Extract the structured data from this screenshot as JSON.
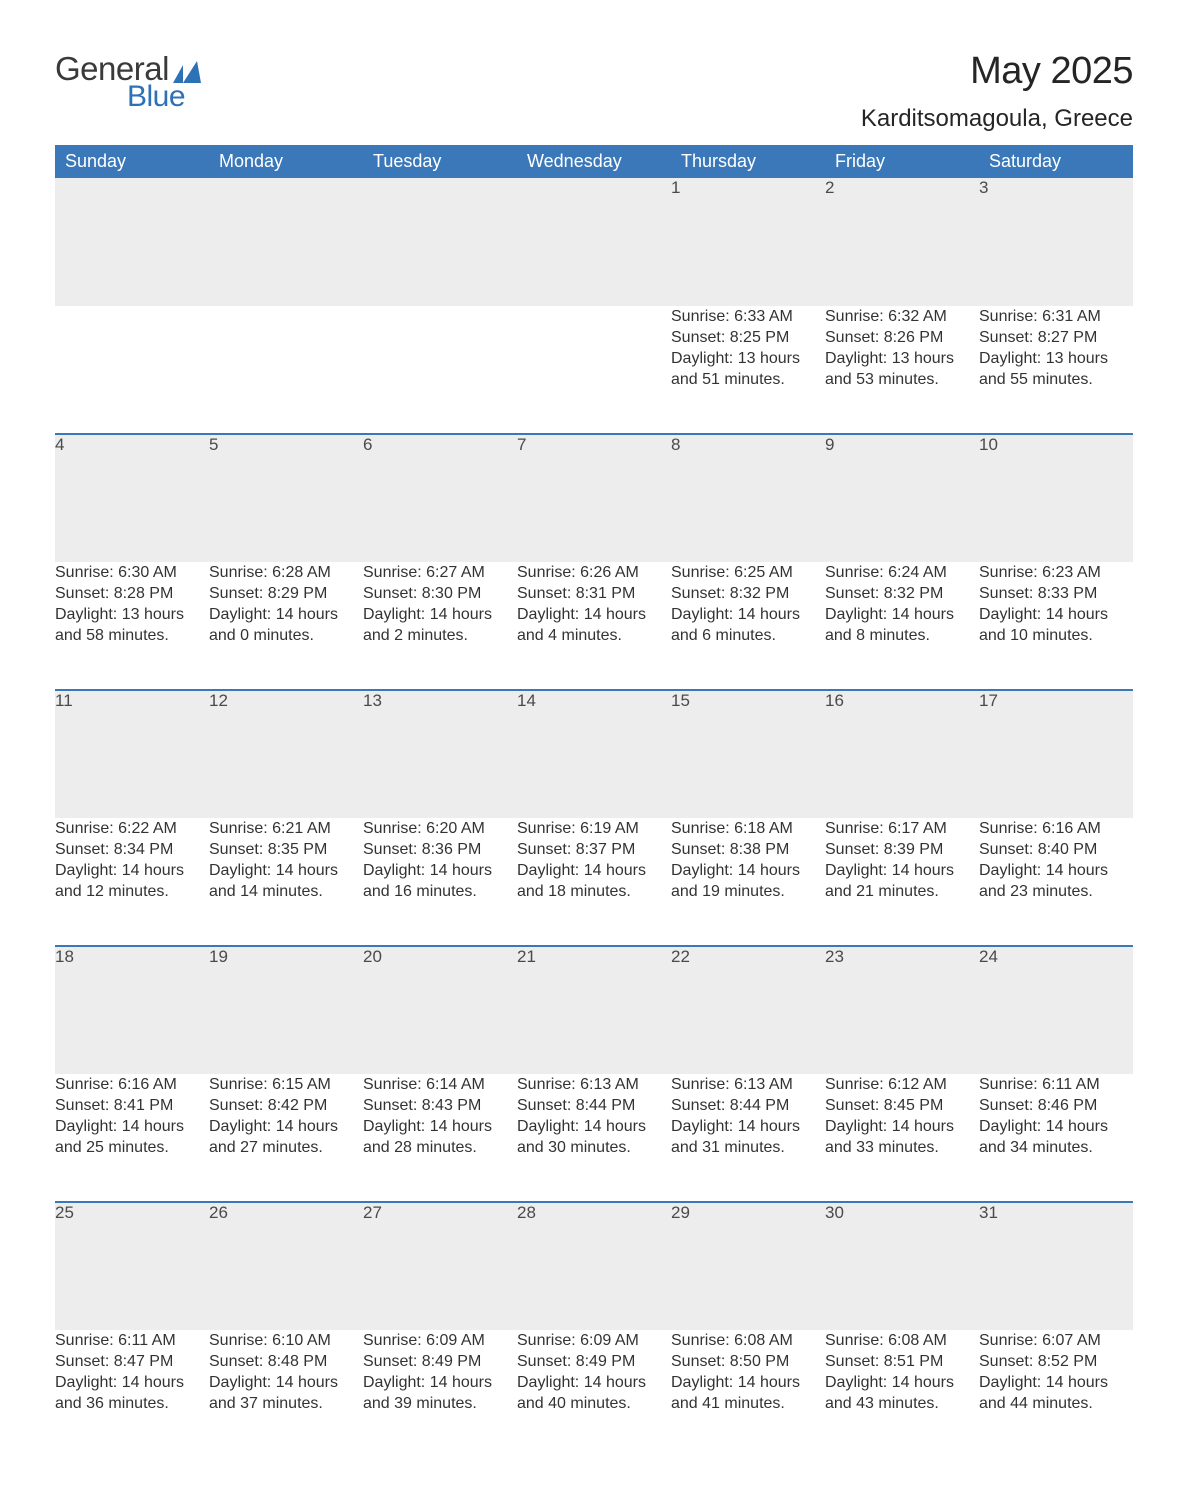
{
  "logo": {
    "word1": "General",
    "word2": "Blue"
  },
  "title": "May 2025",
  "location": "Karditsomagoula, Greece",
  "colors": {
    "header_bg": "#3a78b9",
    "header_text": "#ffffff",
    "daynum_bg": "#ededed",
    "row_border": "#3a78b9",
    "body_text": "#333333",
    "logo_dark": "#3a3a3a",
    "logo_blue": "#2d72b5",
    "background": "#ffffff"
  },
  "day_headers": [
    "Sunday",
    "Monday",
    "Tuesday",
    "Wednesday",
    "Thursday",
    "Friday",
    "Saturday"
  ],
  "weeks": [
    [
      null,
      null,
      null,
      null,
      {
        "n": "1",
        "sunrise": "6:33 AM",
        "sunset": "8:25 PM",
        "day_h": 13,
        "day_m": 51
      },
      {
        "n": "2",
        "sunrise": "6:32 AM",
        "sunset": "8:26 PM",
        "day_h": 13,
        "day_m": 53
      },
      {
        "n": "3",
        "sunrise": "6:31 AM",
        "sunset": "8:27 PM",
        "day_h": 13,
        "day_m": 55
      }
    ],
    [
      {
        "n": "4",
        "sunrise": "6:30 AM",
        "sunset": "8:28 PM",
        "day_h": 13,
        "day_m": 58
      },
      {
        "n": "5",
        "sunrise": "6:28 AM",
        "sunset": "8:29 PM",
        "day_h": 14,
        "day_m": 0
      },
      {
        "n": "6",
        "sunrise": "6:27 AM",
        "sunset": "8:30 PM",
        "day_h": 14,
        "day_m": 2
      },
      {
        "n": "7",
        "sunrise": "6:26 AM",
        "sunset": "8:31 PM",
        "day_h": 14,
        "day_m": 4
      },
      {
        "n": "8",
        "sunrise": "6:25 AM",
        "sunset": "8:32 PM",
        "day_h": 14,
        "day_m": 6
      },
      {
        "n": "9",
        "sunrise": "6:24 AM",
        "sunset": "8:32 PM",
        "day_h": 14,
        "day_m": 8
      },
      {
        "n": "10",
        "sunrise": "6:23 AM",
        "sunset": "8:33 PM",
        "day_h": 14,
        "day_m": 10
      }
    ],
    [
      {
        "n": "11",
        "sunrise": "6:22 AM",
        "sunset": "8:34 PM",
        "day_h": 14,
        "day_m": 12
      },
      {
        "n": "12",
        "sunrise": "6:21 AM",
        "sunset": "8:35 PM",
        "day_h": 14,
        "day_m": 14
      },
      {
        "n": "13",
        "sunrise": "6:20 AM",
        "sunset": "8:36 PM",
        "day_h": 14,
        "day_m": 16
      },
      {
        "n": "14",
        "sunrise": "6:19 AM",
        "sunset": "8:37 PM",
        "day_h": 14,
        "day_m": 18
      },
      {
        "n": "15",
        "sunrise": "6:18 AM",
        "sunset": "8:38 PM",
        "day_h": 14,
        "day_m": 19
      },
      {
        "n": "16",
        "sunrise": "6:17 AM",
        "sunset": "8:39 PM",
        "day_h": 14,
        "day_m": 21
      },
      {
        "n": "17",
        "sunrise": "6:16 AM",
        "sunset": "8:40 PM",
        "day_h": 14,
        "day_m": 23
      }
    ],
    [
      {
        "n": "18",
        "sunrise": "6:16 AM",
        "sunset": "8:41 PM",
        "day_h": 14,
        "day_m": 25
      },
      {
        "n": "19",
        "sunrise": "6:15 AM",
        "sunset": "8:42 PM",
        "day_h": 14,
        "day_m": 27
      },
      {
        "n": "20",
        "sunrise": "6:14 AM",
        "sunset": "8:43 PM",
        "day_h": 14,
        "day_m": 28
      },
      {
        "n": "21",
        "sunrise": "6:13 AM",
        "sunset": "8:44 PM",
        "day_h": 14,
        "day_m": 30
      },
      {
        "n": "22",
        "sunrise": "6:13 AM",
        "sunset": "8:44 PM",
        "day_h": 14,
        "day_m": 31
      },
      {
        "n": "23",
        "sunrise": "6:12 AM",
        "sunset": "8:45 PM",
        "day_h": 14,
        "day_m": 33
      },
      {
        "n": "24",
        "sunrise": "6:11 AM",
        "sunset": "8:46 PM",
        "day_h": 14,
        "day_m": 34
      }
    ],
    [
      {
        "n": "25",
        "sunrise": "6:11 AM",
        "sunset": "8:47 PM",
        "day_h": 14,
        "day_m": 36
      },
      {
        "n": "26",
        "sunrise": "6:10 AM",
        "sunset": "8:48 PM",
        "day_h": 14,
        "day_m": 37
      },
      {
        "n": "27",
        "sunrise": "6:09 AM",
        "sunset": "8:49 PM",
        "day_h": 14,
        "day_m": 39
      },
      {
        "n": "28",
        "sunrise": "6:09 AM",
        "sunset": "8:49 PM",
        "day_h": 14,
        "day_m": 40
      },
      {
        "n": "29",
        "sunrise": "6:08 AM",
        "sunset": "8:50 PM",
        "day_h": 14,
        "day_m": 41
      },
      {
        "n": "30",
        "sunrise": "6:08 AM",
        "sunset": "8:51 PM",
        "day_h": 14,
        "day_m": 43
      },
      {
        "n": "31",
        "sunrise": "6:07 AM",
        "sunset": "8:52 PM",
        "day_h": 14,
        "day_m": 44
      }
    ]
  ],
  "labels": {
    "sunrise": "Sunrise:",
    "sunset": "Sunset:",
    "daylight": "Daylight:",
    "hours": "hours",
    "and": "and",
    "minutes": "minutes."
  }
}
